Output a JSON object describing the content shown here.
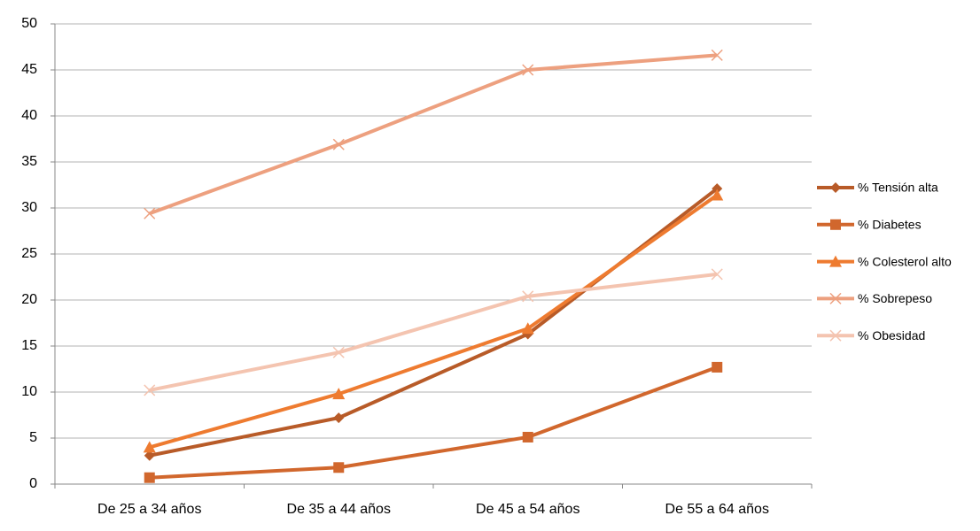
{
  "chart_data": {
    "type": "line",
    "categories": [
      "De 25 a 34 años",
      "De 35 a 44 años",
      "De 45 a 54 años",
      "De 55 a 64 años"
    ],
    "series": [
      {
        "name": "% Tensión alta",
        "color": "#b85b28",
        "marker": "diamond",
        "values": [
          3.1,
          7.2,
          16.3,
          32.1
        ]
      },
      {
        "name": "% Diabetes",
        "color": "#d1672d",
        "marker": "square",
        "values": [
          0.7,
          1.8,
          5.1,
          12.7
        ]
      },
      {
        "name": "% Colesterol alto",
        "color": "#ee7b30",
        "marker": "triangle",
        "values": [
          4.0,
          9.8,
          16.9,
          31.4
        ]
      },
      {
        "name": "% Sobrepeso",
        "color": "#eda07f",
        "marker": "x",
        "values": [
          29.4,
          36.9,
          45.0,
          46.6
        ]
      },
      {
        "name": "% Obesidad",
        "color": "#f4c4b0",
        "marker": "x",
        "values": [
          10.2,
          14.3,
          20.4,
          22.8
        ]
      }
    ],
    "ylim": [
      0,
      50
    ],
    "yticks": [
      0,
      5,
      10,
      15,
      20,
      25,
      30,
      35,
      40,
      45,
      50
    ],
    "grid": true,
    "legend": "right"
  }
}
